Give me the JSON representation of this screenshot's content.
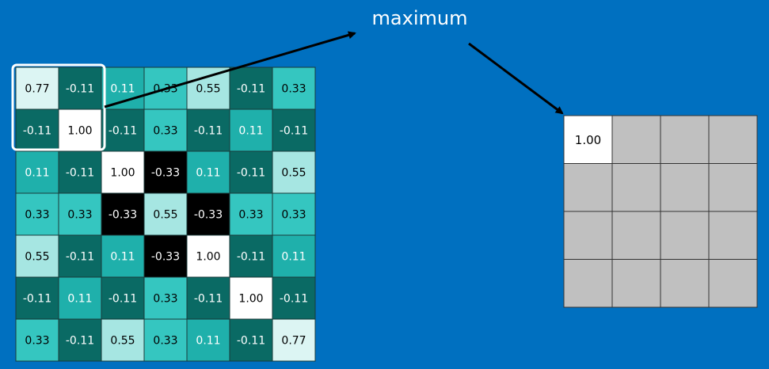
{
  "label": "maximum",
  "input_grid": {
    "rows": [
      [
        "0.77",
        "-0.11",
        "0.11",
        "0.33",
        "0.55",
        "-0.11",
        "0.33"
      ],
      [
        "-0.11",
        "1.00",
        "-0.11",
        "0.33",
        "-0.11",
        "0.11",
        "-0.11"
      ],
      [
        "0.11",
        "-0.11",
        "1.00",
        "-0.33",
        "0.11",
        "-0.11",
        "0.55"
      ],
      [
        "0.33",
        "0.33",
        "-0.33",
        "0.55",
        "-0.33",
        "0.33",
        "0.33"
      ],
      [
        "0.55",
        "-0.11",
        "0.11",
        "-0.33",
        "1.00",
        "-0.11",
        "0.11"
      ],
      [
        "-0.11",
        "0.11",
        "-0.11",
        "0.33",
        "-0.11",
        "1.00",
        "-0.11"
      ],
      [
        "0.33",
        "-0.11",
        "0.55",
        "0.33",
        "0.11",
        "-0.11",
        "0.77"
      ]
    ]
  },
  "output_grid": {
    "first_cell": "1.00"
  }
}
